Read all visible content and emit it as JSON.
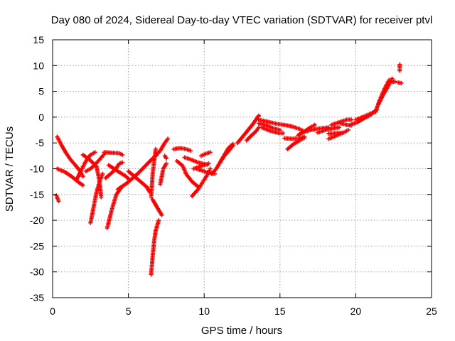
{
  "chart_data": {
    "type": "scatter",
    "title": "Day 080 of 2024, Sidereal Day-to-day VTEC variation (SDTVAR) for receiver ptvl",
    "xlabel": "GPS time / hours",
    "ylabel": "SDTVAR / TECUs",
    "xlim": [
      0,
      25
    ],
    "ylim": [
      -35,
      15
    ],
    "xticks": [
      0,
      5,
      10,
      15,
      20,
      25
    ],
    "yticks": [
      -35,
      -30,
      -25,
      -20,
      -15,
      -10,
      -5,
      0,
      5,
      10,
      15
    ],
    "grid": true,
    "marker": "plus",
    "color": "#ff0000",
    "series": [
      {
        "name": "SDTVAR",
        "segments": [
          [
            [
              0.25,
              -15.2
            ],
            [
              0.4,
              -16.3
            ]
          ],
          [
            [
              0.3,
              -3.8
            ],
            [
              0.6,
              -5.5
            ],
            [
              0.9,
              -7.0
            ],
            [
              1.2,
              -8.3
            ],
            [
              1.5,
              -9.3
            ],
            [
              1.8,
              -10.4
            ],
            [
              2.0,
              -11.5
            ]
          ],
          [
            [
              0.3,
              -10.0
            ],
            [
              0.8,
              -10.6
            ],
            [
              1.3,
              -11.6
            ],
            [
              1.7,
              -12.6
            ],
            [
              2.0,
              -13.2
            ]
          ],
          [
            [
              1.6,
              -12.0
            ],
            [
              1.9,
              -10.2
            ],
            [
              2.2,
              -8.5
            ],
            [
              2.5,
              -7.3
            ],
            [
              2.8,
              -6.8
            ]
          ],
          [
            [
              2.2,
              -10.5
            ],
            [
              2.5,
              -10.0
            ],
            [
              2.8,
              -9.2
            ],
            [
              3.1,
              -8.2
            ],
            [
              3.4,
              -7.2
            ]
          ],
          [
            [
              2.5,
              -20.5
            ],
            [
              2.7,
              -17.5
            ],
            [
              2.9,
              -14.5
            ],
            [
              3.1,
              -12.5
            ],
            [
              3.3,
              -11.0
            ]
          ],
          [
            [
              2.0,
              -7.3
            ],
            [
              2.5,
              -8.4
            ],
            [
              2.9,
              -9.6
            ],
            [
              3.1,
              -12.5
            ],
            [
              3.2,
              -15.5
            ]
          ],
          [
            [
              3.4,
              -6.8
            ],
            [
              3.9,
              -6.9
            ],
            [
              4.4,
              -7.0
            ],
            [
              4.6,
              -7.3
            ]
          ],
          [
            [
              3.5,
              -11.8
            ],
            [
              3.9,
              -10.8
            ],
            [
              4.2,
              -9.9
            ],
            [
              4.4,
              -9.0
            ],
            [
              4.6,
              -8.8
            ]
          ],
          [
            [
              3.6,
              -21.5
            ],
            [
              3.9,
              -18.0
            ],
            [
              4.2,
              -15.0
            ],
            [
              4.5,
              -13.8
            ]
          ],
          [
            [
              3.7,
              -9.3
            ],
            [
              4.2,
              -10.3
            ],
            [
              4.8,
              -11.4
            ],
            [
              5.1,
              -12.2
            ]
          ],
          [
            [
              4.3,
              -14.0
            ],
            [
              4.9,
              -12.8
            ],
            [
              5.6,
              -11.0
            ],
            [
              6.2,
              -9.2
            ],
            [
              6.6,
              -8.0
            ]
          ],
          [
            [
              5.0,
              -10.5
            ],
            [
              5.4,
              -11.5
            ],
            [
              5.8,
              -12.5
            ],
            [
              6.2,
              -13.5
            ],
            [
              6.4,
              -14.5
            ]
          ],
          [
            [
              6.5,
              -15.5
            ],
            [
              6.6,
              -11.0
            ],
            [
              6.7,
              -8.5
            ],
            [
              6.8,
              -6.2
            ]
          ],
          [
            [
              6.6,
              -16.0
            ],
            [
              6.9,
              -17.5
            ],
            [
              7.1,
              -18.5
            ],
            [
              7.2,
              -19.0
            ]
          ],
          [
            [
              6.5,
              -30.5
            ],
            [
              6.6,
              -27.0
            ],
            [
              6.7,
              -24.0
            ],
            [
              6.8,
              -22.0
            ],
            [
              7.0,
              -20.0
            ]
          ],
          [
            [
              6.8,
              -7.5
            ],
            [
              7.1,
              -6.5
            ],
            [
              7.4,
              -5.0
            ],
            [
              7.6,
              -4.2
            ]
          ],
          [
            [
              7.1,
              -13.0
            ],
            [
              7.2,
              -11.5
            ],
            [
              7.3,
              -10.0
            ],
            [
              7.5,
              -9.0
            ]
          ],
          [
            [
              7.4,
              -7.5
            ],
            [
              7.5,
              -8.0
            ]
          ],
          [
            [
              8.0,
              -6.2
            ],
            [
              8.4,
              -6.0
            ],
            [
              8.8,
              -6.2
            ],
            [
              9.1,
              -6.5
            ]
          ],
          [
            [
              8.2,
              -8.5
            ],
            [
              8.6,
              -9.5
            ],
            [
              8.8,
              -11.0
            ],
            [
              9.2,
              -12.5
            ],
            [
              9.6,
              -13.5
            ]
          ],
          [
            [
              8.7,
              -7.8
            ],
            [
              9.1,
              -8.2
            ],
            [
              9.6,
              -8.8
            ],
            [
              10.2,
              -9.2
            ]
          ],
          [
            [
              9.3,
              -10.0
            ],
            [
              9.9,
              -9.4
            ],
            [
              10.3,
              -9.0
            ]
          ],
          [
            [
              9.2,
              -15.3
            ],
            [
              9.6,
              -14.0
            ],
            [
              9.9,
              -12.6
            ],
            [
              10.2,
              -11.2
            ],
            [
              10.4,
              -10.0
            ]
          ],
          [
            [
              9.5,
              -10.0
            ],
            [
              10.2,
              -10.7
            ],
            [
              10.7,
              -11.0
            ]
          ],
          [
            [
              9.8,
              -7.5
            ],
            [
              10.1,
              -7.1
            ],
            [
              10.4,
              -6.8
            ]
          ],
          [
            [
              10.5,
              -11.0
            ],
            [
              10.8,
              -10.0
            ],
            [
              11.1,
              -8.5
            ],
            [
              11.4,
              -7.0
            ],
            [
              11.6,
              -6.0
            ],
            [
              11.9,
              -5.2
            ]
          ],
          [
            [
              11.0,
              -9.0
            ],
            [
              11.3,
              -7.6
            ],
            [
              11.6,
              -6.6
            ],
            [
              11.9,
              -5.5
            ]
          ],
          [
            [
              12.2,
              -5.0
            ],
            [
              12.7,
              -3.2
            ],
            [
              13.2,
              -1.4
            ],
            [
              13.6,
              0.3
            ]
          ],
          [
            [
              12.8,
              -4.5
            ],
            [
              13.1,
              -3.6
            ],
            [
              13.4,
              -2.8
            ],
            [
              13.6,
              -2.0
            ]
          ],
          [
            [
              13.6,
              -1.2
            ],
            [
              14.1,
              -1.6
            ],
            [
              14.6,
              -2.2
            ],
            [
              15.0,
              -2.5
            ]
          ],
          [
            [
              13.6,
              -0.5
            ],
            [
              14.2,
              -0.9
            ],
            [
              14.8,
              -1.3
            ],
            [
              15.2,
              -1.5
            ]
          ],
          [
            [
              13.8,
              -2.0
            ],
            [
              14.3,
              -2.6
            ],
            [
              14.9,
              -3.1
            ],
            [
              15.2,
              -3.1
            ]
          ],
          [
            [
              15.3,
              -1.5
            ],
            [
              15.8,
              -1.8
            ],
            [
              16.3,
              -2.3
            ],
            [
              16.5,
              -2.6
            ]
          ],
          [
            [
              15.3,
              -4.1
            ],
            [
              15.8,
              -4.2
            ],
            [
              16.3,
              -4.1
            ],
            [
              16.6,
              -3.8
            ]
          ],
          [
            [
              15.5,
              -6.2
            ],
            [
              15.9,
              -5.2
            ],
            [
              16.3,
              -4.5
            ],
            [
              16.6,
              -4.0
            ]
          ],
          [
            [
              16.2,
              -3.5
            ],
            [
              16.6,
              -2.8
            ],
            [
              17.0,
              -2.0
            ],
            [
              17.3,
              -1.5
            ]
          ],
          [
            [
              16.4,
              -3.0
            ],
            [
              17.0,
              -2.5
            ],
            [
              17.6,
              -2.2
            ],
            [
              18.2,
              -2.0
            ]
          ],
          [
            [
              17.5,
              -3.0
            ],
            [
              18.1,
              -2.4
            ],
            [
              18.6,
              -2.1
            ],
            [
              18.9,
              -2.0
            ]
          ],
          [
            [
              18.2,
              -4.2
            ],
            [
              18.7,
              -3.6
            ],
            [
              19.2,
              -3.0
            ],
            [
              19.5,
              -2.5
            ]
          ],
          [
            [
              18.2,
              -3.2
            ],
            [
              18.8,
              -3.1
            ],
            [
              19.2,
              -3.0
            ]
          ],
          [
            [
              18.4,
              -1.5
            ],
            [
              18.9,
              -1.0
            ],
            [
              19.4,
              -0.5
            ],
            [
              19.7,
              -0.5
            ]
          ],
          [
            [
              19.0,
              -1.2
            ],
            [
              19.4,
              -1.5
            ],
            [
              19.7,
              -1.6
            ]
          ],
          [
            [
              19.7,
              -1.4
            ],
            [
              20.1,
              -1.0
            ],
            [
              20.5,
              -0.3
            ],
            [
              21.0,
              0.5
            ],
            [
              21.4,
              1.5
            ]
          ],
          [
            [
              20.0,
              -0.5
            ],
            [
              20.6,
              0.2
            ],
            [
              21.2,
              1.0
            ]
          ],
          [
            [
              21.3,
              1.0
            ],
            [
              21.6,
              3.5
            ],
            [
              21.9,
              5.5
            ],
            [
              22.2,
              7.2
            ]
          ],
          [
            [
              21.5,
              2.5
            ],
            [
              21.8,
              4.3
            ],
            [
              22.1,
              5.8
            ],
            [
              22.4,
              7.5
            ]
          ],
          [
            [
              22.4,
              6.8
            ],
            [
              22.6,
              6.9
            ]
          ],
          [
            [
              22.9,
              10.2
            ],
            [
              22.9,
              9.0
            ]
          ],
          [
            [
              22.8,
              6.7
            ],
            [
              23.0,
              6.6
            ]
          ]
        ]
      }
    ]
  }
}
